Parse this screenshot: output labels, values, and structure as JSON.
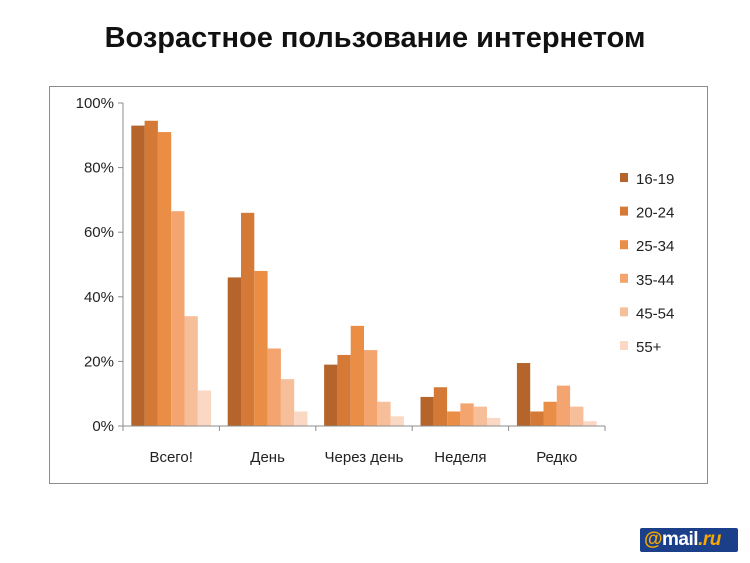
{
  "page": {
    "title": "Возрастное пользование интернетом"
  },
  "logo": {
    "at": "@",
    "name": "mail",
    "tld": ".ru"
  },
  "colors": [
    "#b5652b",
    "#d47a36",
    "#ea8d45",
    "#f4a46e",
    "#f7be9a",
    "#fbd8c4"
  ],
  "chart_data": {
    "type": "bar",
    "title": "Возрастное пользование интернетом",
    "xlabel": "",
    "ylabel": "",
    "ylim": [
      0,
      100
    ],
    "yticks": [
      "0%",
      "20%",
      "40%",
      "60%",
      "80%",
      "100%"
    ],
    "grid": false,
    "legend_position": "right",
    "categories": [
      "Всего!",
      "День",
      "Через день",
      "Неделя",
      "Редко"
    ],
    "series": [
      {
        "name": "16-19",
        "values": [
          93,
          46,
          19,
          9,
          19.5
        ]
      },
      {
        "name": "20-24",
        "values": [
          94.5,
          66,
          22,
          12,
          4.5
        ]
      },
      {
        "name": "25-34",
        "values": [
          91,
          48,
          31,
          4.5,
          7.5
        ]
      },
      {
        "name": "35-44",
        "values": [
          66.5,
          24,
          23.5,
          7,
          12.5
        ]
      },
      {
        "name": "45-54",
        "values": [
          34,
          14.5,
          7.5,
          6,
          6
        ]
      },
      {
        "name": "55+",
        "values": [
          11,
          4.5,
          3,
          2.5,
          1.5
        ]
      }
    ]
  }
}
